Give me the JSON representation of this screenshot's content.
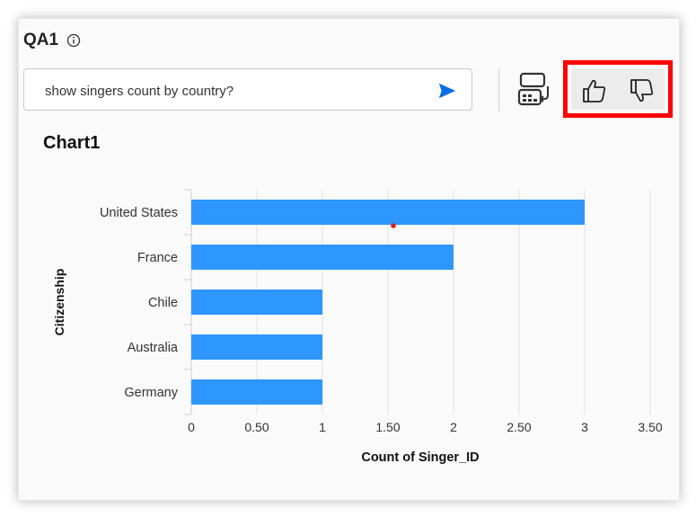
{
  "panel": {
    "title": "QA1"
  },
  "query": {
    "text": "show singers count by country?"
  },
  "chart": {
    "heading": "Chart1"
  },
  "icons": {
    "info": "info-icon",
    "send": "send-icon",
    "visualization": "chart-settings-icon",
    "like": "thumbs-up-icon",
    "dislike": "thumbs-down-icon"
  },
  "colors": {
    "bar": "#2e96ff",
    "send": "#0a6ee6",
    "highlight": "#ff0000"
  },
  "chart_data": {
    "type": "bar",
    "orientation": "horizontal",
    "categories": [
      "United States",
      "France",
      "Chile",
      "Australia",
      "Germany"
    ],
    "values": [
      3,
      2,
      1,
      1,
      1
    ],
    "xlabel": "Count of Singer_ID",
    "ylabel": "Citizenship",
    "xlim": [
      0,
      3.5
    ],
    "xticks": [
      "0",
      "0.50",
      "1",
      "1.50",
      "2",
      "2.50",
      "3",
      "3.50"
    ],
    "grid": true
  }
}
